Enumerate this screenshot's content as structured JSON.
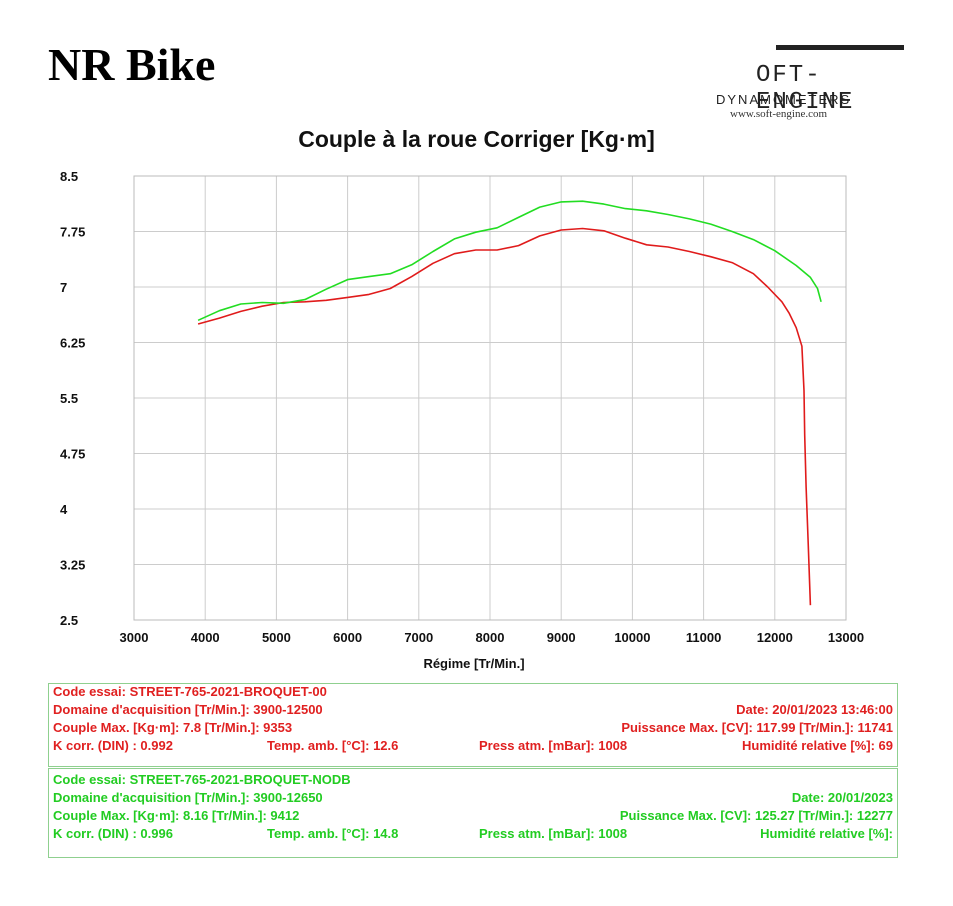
{
  "header": {
    "brand": "NR Bike",
    "logo_name": "OFT-ENGINE",
    "logo_sub": "DYNAMOMETERS",
    "logo_url": "www.soft-engine.com"
  },
  "colors": {
    "run1": "#e01b1b",
    "run2": "#22dd22",
    "grid": "#cccccc"
  },
  "chart_data": {
    "type": "line",
    "title": "Couple à la roue Corriger [Kg·m]",
    "xlabel": "Régime [Tr/Min.]",
    "ylabel": "",
    "xlim": [
      3000,
      13000
    ],
    "ylim": [
      2.5,
      8.5
    ],
    "x_ticks": [
      "3000",
      "4000",
      "5000",
      "6000",
      "7000",
      "8000",
      "9000",
      "10000",
      "11000",
      "12000",
      "13000"
    ],
    "y_ticks": [
      "8.5",
      "7.75",
      "7",
      "6.25",
      "5.5",
      "4.75",
      "4",
      "3.25",
      "2.5"
    ],
    "grid": true,
    "series": [
      {
        "color": "#e01b1b",
        "x": [
          3900,
          4200,
          4500,
          4800,
          5100,
          5400,
          5700,
          6000,
          6300,
          6600,
          6900,
          7200,
          7500,
          7800,
          8100,
          8400,
          8700,
          9000,
          9300,
          9600,
          9900,
          10200,
          10500,
          10800,
          11100,
          11400,
          11700,
          11900,
          12100,
          12200,
          12300,
          12380,
          12410,
          12420,
          12440,
          12470,
          12500
        ],
        "y": [
          6.5,
          6.58,
          6.67,
          6.74,
          6.79,
          6.8,
          6.82,
          6.86,
          6.9,
          6.98,
          7.14,
          7.32,
          7.45,
          7.5,
          7.5,
          7.56,
          7.69,
          7.77,
          7.79,
          7.76,
          7.66,
          7.57,
          7.54,
          7.48,
          7.41,
          7.33,
          7.18,
          7.0,
          6.8,
          6.65,
          6.45,
          6.2,
          5.6,
          5.0,
          4.3,
          3.5,
          2.7
        ]
      },
      {
        "color": "#22dd22",
        "x": [
          3900,
          4200,
          4500,
          4800,
          5100,
          5400,
          5700,
          6000,
          6300,
          6600,
          6900,
          7200,
          7500,
          7800,
          8100,
          8400,
          8700,
          9000,
          9300,
          9600,
          9900,
          10200,
          10500,
          10800,
          11100,
          11400,
          11700,
          12000,
          12300,
          12500,
          12600,
          12650
        ],
        "y": [
          6.55,
          6.68,
          6.77,
          6.79,
          6.78,
          6.83,
          6.97,
          7.1,
          7.14,
          7.18,
          7.3,
          7.48,
          7.65,
          7.74,
          7.8,
          7.94,
          8.08,
          8.15,
          8.16,
          8.12,
          8.06,
          8.03,
          7.98,
          7.92,
          7.85,
          7.75,
          7.64,
          7.49,
          7.29,
          7.13,
          6.98,
          6.8
        ]
      }
    ]
  },
  "run1": {
    "code": "Code essai: STREET-765-2021-BROQUET-00",
    "domain": "Domaine d'acquisition [Tr/Min.]: 3900-12500",
    "date": "Date: 20/01/2023   13:46:00",
    "torque": "Couple Max. [Kg·m]: 7.8   [Tr/Min.]: 9353",
    "power": "Puissance Max. [CV]: 117.99   [Tr/Min.]: 11741",
    "kcorr": "K corr. (DIN) : 0.992",
    "temp": "Temp. amb. [°C]: 12.6",
    "press": "Press atm. [mBar]: 1008",
    "hum": "Humidité relative [%]: 69"
  },
  "run2": {
    "code": "Code essai: STREET-765-2021-BROQUET-NODB",
    "domain": "Domaine d'acquisition [Tr/Min.]: 3900-12650",
    "date": "Date: 20/01/2023",
    "torque": "Couple Max. [Kg·m]: 8.16   [Tr/Min.]: 9412",
    "power": "Puissance Max. [CV]: 125.27   [Tr/Min.]: 12277",
    "kcorr": "K corr. (DIN) : 0.996",
    "temp": "Temp. amb. [°C]: 14.8",
    "press": "Press atm. [mBar]: 1008",
    "hum": "Humidité relative [%]:"
  }
}
